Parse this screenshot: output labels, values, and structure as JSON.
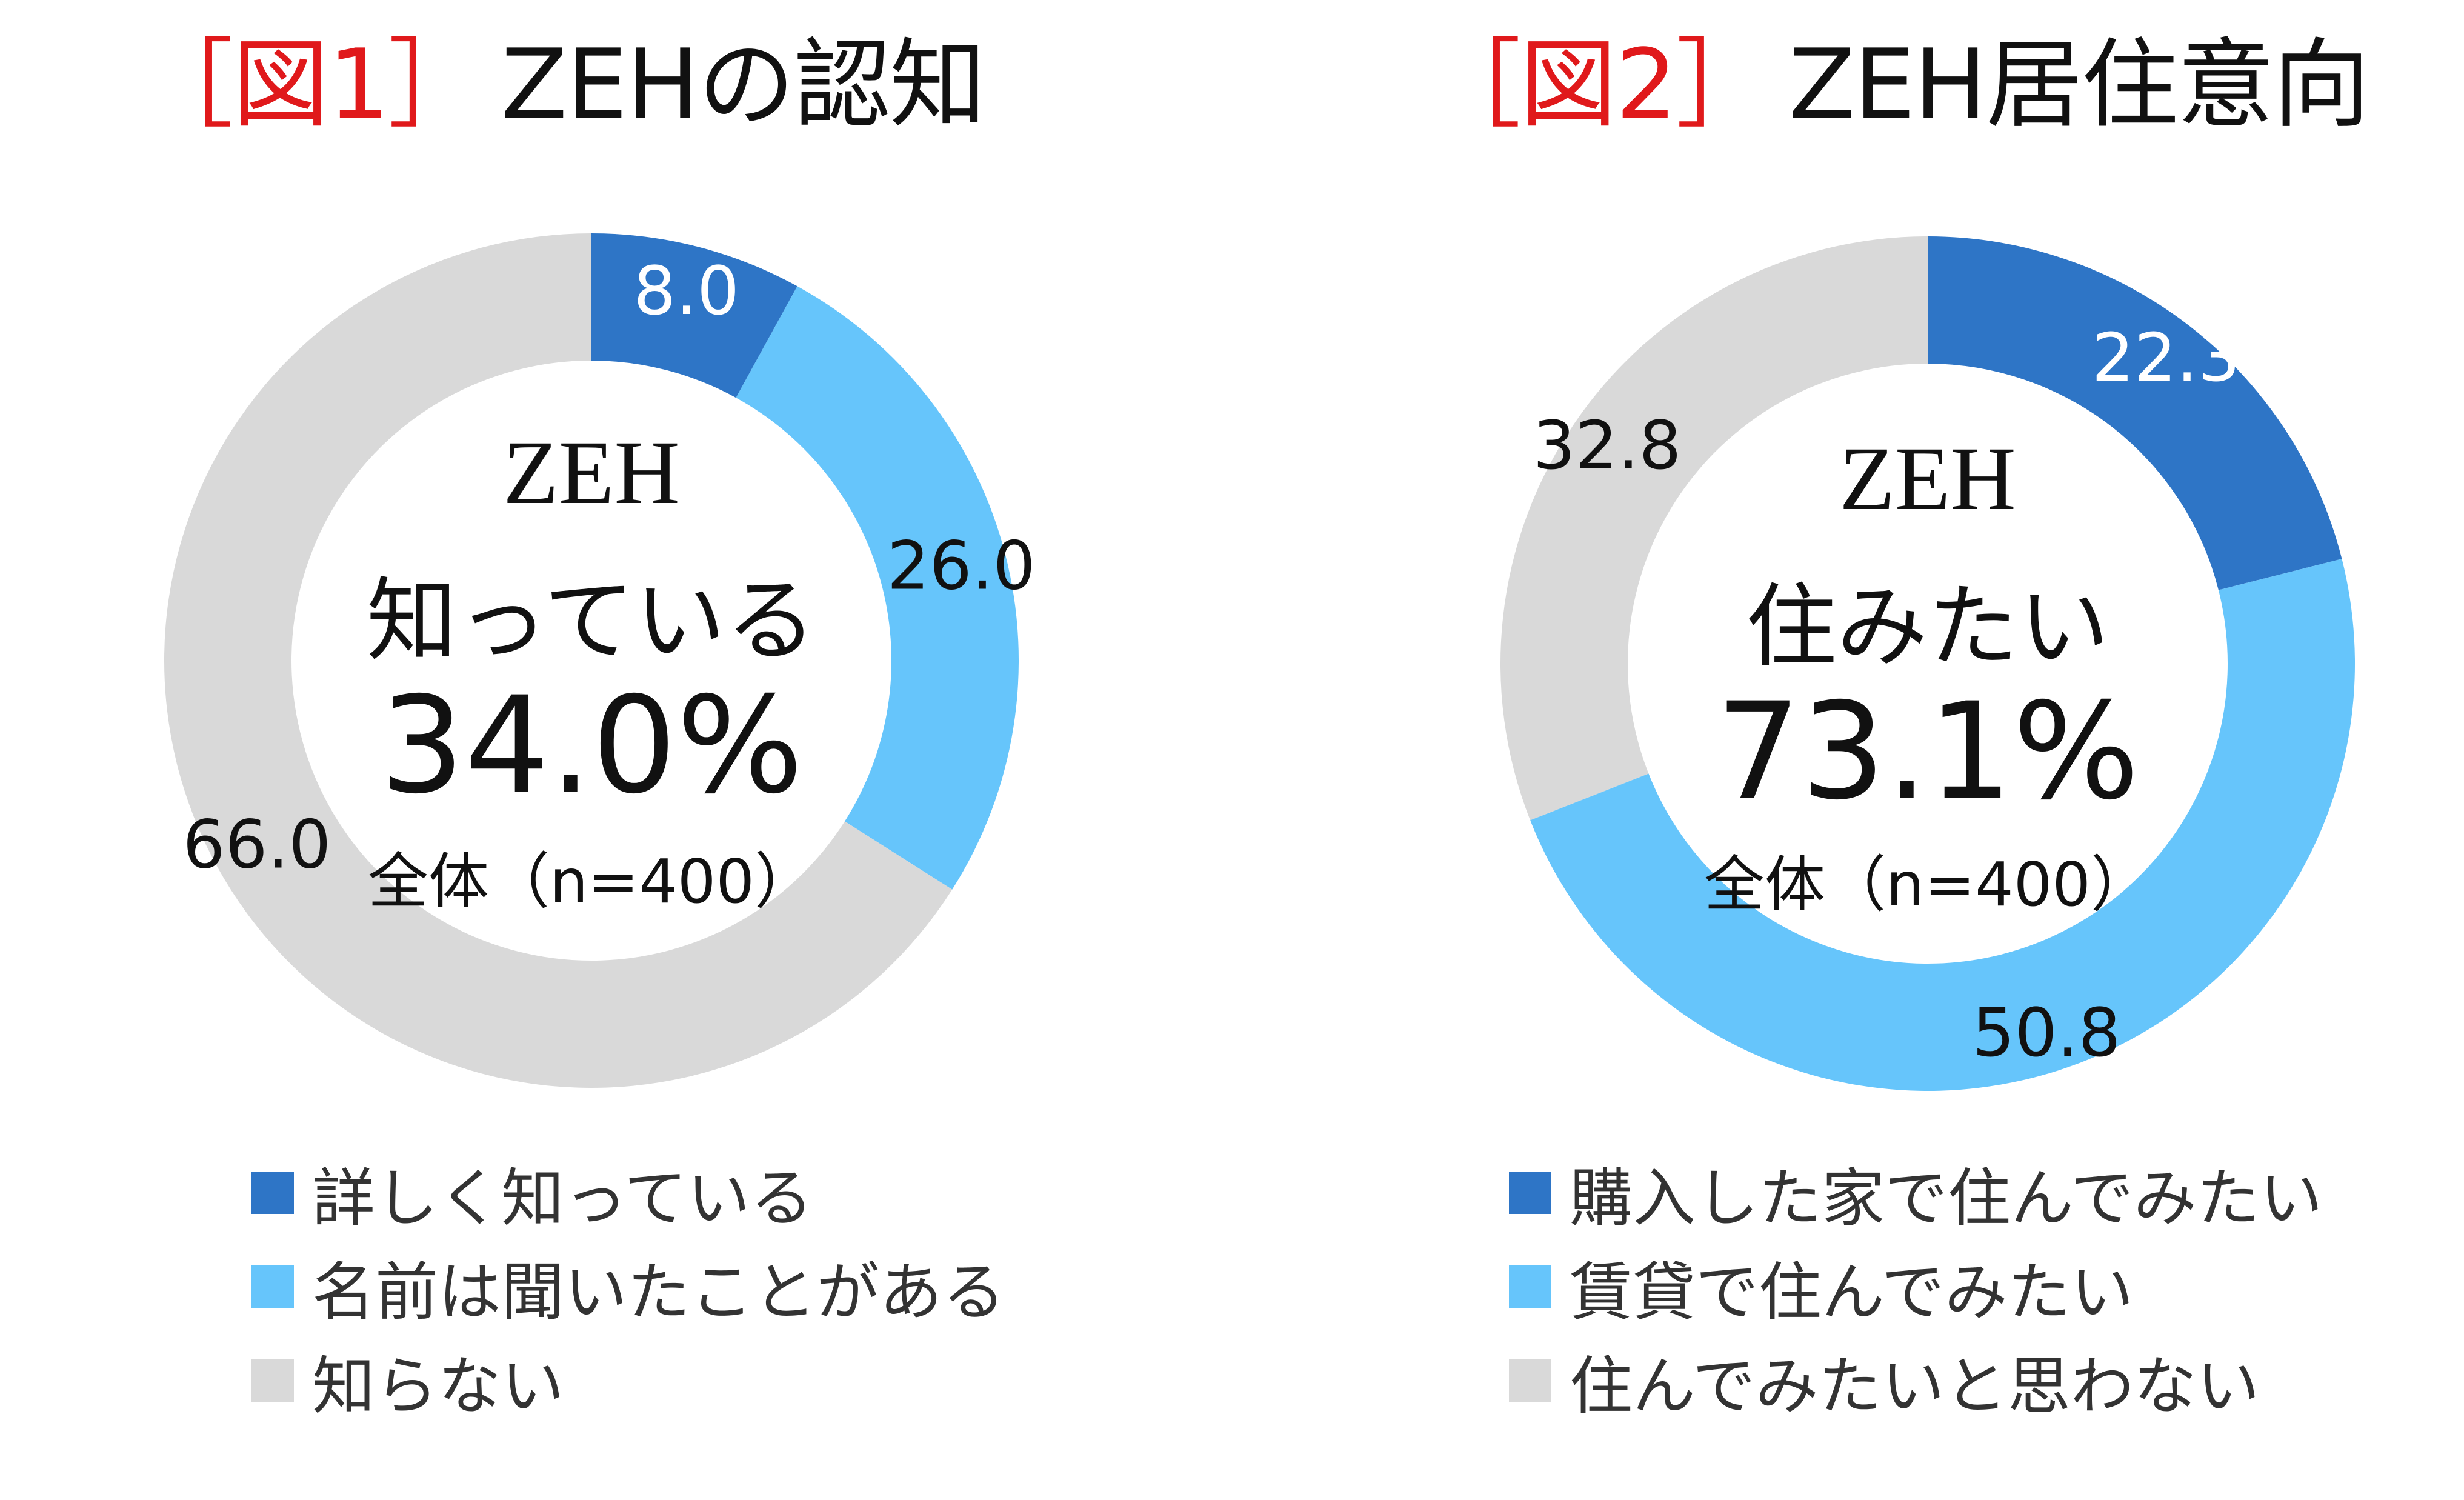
{
  "chart_data": [
    {
      "type": "pie",
      "style": "donut",
      "title_prefix": "［図1］",
      "title_text": "ZEHの認知",
      "slices": [
        {
          "label": "詳しく知っている",
          "value": 8.0,
          "value_label": "8.0",
          "color": "#2e75c6",
          "value_color": "#ffffff"
        },
        {
          "label": "名前は聞いたことがある",
          "value": 26.0,
          "value_label": "26.0",
          "color": "#66c5fb",
          "value_color": "#111111"
        },
        {
          "label": "知らない",
          "value": 66.0,
          "value_label": "66.0",
          "color": "#d9d9d9",
          "value_color": "#111111"
        }
      ],
      "center": {
        "topic": "ZEH",
        "phrase": "知っている",
        "percent": "34.0%",
        "base": "全体（n=400）"
      },
      "legend_position": "bottom"
    },
    {
      "type": "pie",
      "style": "donut",
      "title_prefix": "［図2］",
      "title_text": "ZEH居住意向",
      "slices": [
        {
          "label": "購入した家で住んでみたい",
          "value": 22.3,
          "value_label": "22.3",
          "color": "#2e75c6",
          "value_color": "#ffffff"
        },
        {
          "label": "賃貸で住んでみたい",
          "value": 50.8,
          "value_label": "50.8",
          "color": "#66c5fb",
          "value_color": "#111111"
        },
        {
          "label": "住んでみたいと思わない",
          "value": 32.8,
          "value_label": "32.8",
          "color": "#d9d9d9",
          "value_color": "#111111"
        }
      ],
      "center": {
        "topic": "ZEH",
        "phrase": "住みたい",
        "percent": "73.1%",
        "base": "全体（n=400）"
      },
      "legend_position": "bottom"
    }
  ]
}
